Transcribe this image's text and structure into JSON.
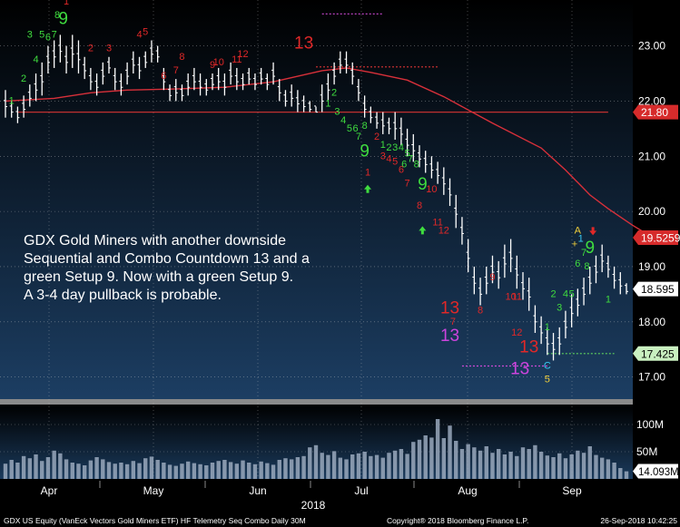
{
  "chart_data": {
    "type": "candlestick",
    "ticker": "GDX US Equity",
    "ylim": [
      16.6,
      23.7
    ],
    "yticks": [
      "23.00",
      "22.00",
      "21.00",
      "20.00",
      "19.00",
      "18.00",
      "17.00"
    ],
    "xticks": [
      "Apr",
      "May",
      "Jun",
      "Jul",
      "Aug",
      "Sep"
    ],
    "year_label": "2018",
    "price_tags": [
      {
        "text": "21.80",
        "value": 21.8,
        "color": "#d62b2b",
        "text_color": "#ffffff"
      },
      {
        "text": "19.5259",
        "value": 19.5259,
        "color": "#d62b2b",
        "text_color": "#ffffff"
      },
      {
        "text": "18.595",
        "value": 18.595,
        "color": "#ffffff",
        "text_color": "#000000"
      },
      {
        "text": "17.425",
        "value": 17.425,
        "color": "#c9f0c0",
        "text_color": "#000000"
      }
    ],
    "moving_average": [
      [
        0,
        22.0
      ],
      [
        8,
        22.05
      ],
      [
        14,
        22.15
      ],
      [
        20,
        22.2
      ],
      [
        28,
        22.22
      ],
      [
        36,
        22.25
      ],
      [
        44,
        22.35
      ],
      [
        52,
        22.55
      ],
      [
        56,
        22.6
      ],
      [
        60,
        22.52
      ],
      [
        66,
        22.38
      ],
      [
        72,
        22.08
      ],
      [
        80,
        21.6
      ],
      [
        88,
        21.15
      ],
      [
        92,
        20.75
      ],
      [
        96,
        20.3
      ],
      [
        99,
        20.05
      ],
      [
        103,
        19.75
      ],
      [
        106,
        19.55
      ]
    ],
    "ohlc": [
      [
        0,
        22.2,
        21.7
      ],
      [
        1,
        22.0,
        21.7
      ],
      [
        2,
        21.9,
        21.6
      ],
      [
        3,
        22.1,
        21.7
      ],
      [
        4,
        22.3,
        21.9
      ],
      [
        5,
        22.5,
        22.0
      ],
      [
        6,
        22.7,
        22.1
      ],
      [
        7,
        23.0,
        22.5
      ],
      [
        8,
        23.1,
        22.6
      ],
      [
        9,
        23.2,
        22.7
      ],
      [
        10,
        23.0,
        22.5
      ],
      [
        11,
        23.2,
        22.6
      ],
      [
        12,
        23.1,
        22.5
      ],
      [
        13,
        22.8,
        22.4
      ],
      [
        14,
        22.6,
        22.2
      ],
      [
        15,
        22.5,
        22.1
      ],
      [
        16,
        22.7,
        22.3
      ],
      [
        17,
        22.8,
        22.5
      ],
      [
        18,
        22.6,
        22.2
      ],
      [
        19,
        22.5,
        22.1
      ],
      [
        20,
        22.7,
        22.3
      ],
      [
        21,
        22.9,
        22.5
      ],
      [
        22,
        22.8,
        22.4
      ],
      [
        23,
        22.9,
        22.6
      ],
      [
        24,
        23.1,
        22.7
      ],
      [
        25,
        23.0,
        22.7
      ],
      [
        26,
        22.6,
        22.2
      ],
      [
        27,
        22.3,
        22.0
      ],
      [
        28,
        22.4,
        22.0
      ],
      [
        29,
        22.3,
        22.0
      ],
      [
        30,
        22.5,
        22.1
      ],
      [
        31,
        22.6,
        22.2
      ],
      [
        32,
        22.5,
        22.1
      ],
      [
        33,
        22.4,
        22.1
      ],
      [
        34,
        22.5,
        22.2
      ],
      [
        35,
        22.6,
        22.2
      ],
      [
        36,
        22.5,
        22.1
      ],
      [
        37,
        22.7,
        22.3
      ],
      [
        38,
        22.6,
        22.2
      ],
      [
        39,
        22.5,
        22.2
      ],
      [
        40,
        22.6,
        22.3
      ],
      [
        41,
        22.5,
        22.2
      ],
      [
        42,
        22.6,
        22.3
      ],
      [
        43,
        22.5,
        22.2
      ],
      [
        44,
        22.7,
        22.3
      ],
      [
        45,
        22.4,
        22.0
      ],
      [
        46,
        22.2,
        21.9
      ],
      [
        47,
        22.3,
        21.9
      ],
      [
        48,
        22.2,
        21.8
      ],
      [
        49,
        22.1,
        21.8
      ],
      [
        50,
        22.0,
        21.8
      ],
      [
        51,
        21.9,
        21.8
      ],
      [
        52,
        22.3,
        21.8
      ],
      [
        53,
        22.5,
        22.0
      ],
      [
        54,
        22.7,
        22.3
      ],
      [
        55,
        22.9,
        22.5
      ],
      [
        56,
        22.9,
        22.5
      ],
      [
        57,
        22.7,
        22.3
      ],
      [
        58,
        22.4,
        22.0
      ],
      [
        59,
        22.1,
        21.7
      ],
      [
        60,
        21.9,
        21.6
      ],
      [
        61,
        21.8,
        21.5
      ],
      [
        62,
        21.8,
        21.4
      ],
      [
        63,
        21.7,
        21.4
      ],
      [
        64,
        21.8,
        21.3
      ],
      [
        65,
        21.7,
        21.2
      ],
      [
        66,
        21.5,
        21.0
      ],
      [
        67,
        21.4,
        20.9
      ],
      [
        68,
        21.2,
        20.8
      ],
      [
        69,
        21.1,
        20.7
      ],
      [
        70,
        21.0,
        20.6
      ],
      [
        71,
        20.9,
        20.5
      ],
      [
        72,
        20.8,
        20.3
      ],
      [
        73,
        20.6,
        20.1
      ],
      [
        74,
        20.3,
        19.7
      ],
      [
        75,
        19.9,
        19.4
      ],
      [
        76,
        19.5,
        18.9
      ],
      [
        77,
        19.0,
        18.5
      ],
      [
        78,
        18.8,
        18.3
      ],
      [
        79,
        19.0,
        18.5
      ],
      [
        80,
        19.2,
        18.7
      ],
      [
        81,
        19.1,
        18.6
      ],
      [
        82,
        19.4,
        18.8
      ],
      [
        83,
        19.5,
        18.9
      ],
      [
        84,
        19.2,
        18.6
      ],
      [
        85,
        18.9,
        18.4
      ],
      [
        86,
        18.8,
        18.2
      ],
      [
        87,
        18.3,
        17.8
      ],
      [
        88,
        18.1,
        17.6
      ],
      [
        89,
        17.9,
        17.4
      ],
      [
        90,
        17.8,
        17.3
      ],
      [
        91,
        17.9,
        17.4
      ],
      [
        92,
        18.2,
        17.7
      ],
      [
        93,
        18.5,
        17.9
      ],
      [
        94,
        18.6,
        18.1
      ],
      [
        95,
        18.8,
        18.3
      ],
      [
        96,
        19.0,
        18.5
      ],
      [
        97,
        19.2,
        18.7
      ],
      [
        98,
        19.4,
        18.9
      ],
      [
        99,
        19.2,
        18.8
      ],
      [
        100,
        19.0,
        18.6
      ],
      [
        101,
        18.9,
        18.5
      ],
      [
        102,
        18.7,
        18.5
      ]
    ],
    "setup_labels": [
      {
        "text": "1",
        "x": 1,
        "y": 21.95,
        "color": "#3fdc3f"
      },
      {
        "text": "2",
        "x": 3,
        "y": 22.35,
        "color": "#3fdc3f"
      },
      {
        "text": "3",
        "x": 4,
        "y": 23.15,
        "color": "#3fdc3f"
      },
      {
        "text": "4",
        "x": 5,
        "y": 22.7,
        "color": "#3fdc3f"
      },
      {
        "text": "5",
        "x": 6,
        "y": 23.15,
        "color": "#3fdc3f"
      },
      {
        "text": "6",
        "x": 7,
        "y": 23.1,
        "color": "#3fdc3f"
      },
      {
        "text": "7",
        "x": 8,
        "y": 23.15,
        "color": "#3fdc3f"
      },
      {
        "text": "8",
        "x": 8.5,
        "y": 23.5,
        "color": "#3fdc3f"
      },
      {
        "text": "9",
        "x": 9.5,
        "y": 23.4,
        "color": "#3fdc3f",
        "big": true
      },
      {
        "text": "1",
        "x": 10,
        "y": 23.75,
        "color": "#e02828"
      },
      {
        "text": "2",
        "x": 14,
        "y": 22.9,
        "color": "#e02828"
      },
      {
        "text": "3",
        "x": 17,
        "y": 22.9,
        "color": "#e02828"
      },
      {
        "text": "4",
        "x": 22,
        "y": 23.15,
        "color": "#e02828"
      },
      {
        "text": "5",
        "x": 23,
        "y": 23.2,
        "color": "#e02828"
      },
      {
        "text": "6",
        "x": 26,
        "y": 22.4,
        "color": "#e02828"
      },
      {
        "text": "7",
        "x": 28,
        "y": 22.5,
        "color": "#e02828"
      },
      {
        "text": "8",
        "x": 29,
        "y": 22.75,
        "color": "#e02828"
      },
      {
        "text": "9",
        "x": 34,
        "y": 22.6,
        "color": "#e02828"
      },
      {
        "text": "10",
        "x": 35,
        "y": 22.65,
        "color": "#e02828"
      },
      {
        "text": "11",
        "x": 38,
        "y": 22.7,
        "color": "#e02828"
      },
      {
        "text": "12",
        "x": 39,
        "y": 22.8,
        "color": "#e02828"
      },
      {
        "text": "13",
        "x": 49,
        "y": 22.95,
        "color": "#e02828",
        "big": true
      },
      {
        "text": "1",
        "x": 53,
        "y": 21.9,
        "color": "#3fdc3f"
      },
      {
        "text": "2",
        "x": 54,
        "y": 22.1,
        "color": "#3fdc3f"
      },
      {
        "text": "3",
        "x": 54.5,
        "y": 21.75,
        "color": "#3fdc3f"
      },
      {
        "text": "4",
        "x": 55.5,
        "y": 21.6,
        "color": "#3fdc3f"
      },
      {
        "text": "5",
        "x": 56.5,
        "y": 21.45,
        "color": "#3fdc3f"
      },
      {
        "text": "6",
        "x": 57.5,
        "y": 21.45,
        "color": "#3fdc3f"
      },
      {
        "text": "7",
        "x": 58,
        "y": 21.3,
        "color": "#3fdc3f"
      },
      {
        "text": "8",
        "x": 59,
        "y": 21.5,
        "color": "#3fdc3f"
      },
      {
        "text": "9",
        "x": 59,
        "y": 21.0,
        "color": "#3fdc3f",
        "big": true
      },
      {
        "text": "1",
        "x": 59.5,
        "y": 20.65,
        "color": "#e02828"
      },
      {
        "text": "2",
        "x": 61,
        "y": 21.3,
        "color": "#e02828"
      },
      {
        "text": "1",
        "x": 62,
        "y": 21.15,
        "color": "#3fdc3f"
      },
      {
        "text": "2",
        "x": 63,
        "y": 21.1,
        "color": "#3fdc3f"
      },
      {
        "text": "3",
        "x": 64,
        "y": 21.1,
        "color": "#3fdc3f"
      },
      {
        "text": "4",
        "x": 65,
        "y": 21.1,
        "color": "#3fdc3f"
      },
      {
        "text": "5",
        "x": 66,
        "y": 21.0,
        "color": "#3fdc3f"
      },
      {
        "text": "6",
        "x": 65.5,
        "y": 20.8,
        "color": "#3fdc3f"
      },
      {
        "text": "7",
        "x": 66.5,
        "y": 20.9,
        "color": "#3fdc3f"
      },
      {
        "text": "8",
        "x": 67.5,
        "y": 20.8,
        "color": "#3fdc3f"
      },
      {
        "text": "9",
        "x": 68.5,
        "y": 20.4,
        "color": "#3fdc3f",
        "big": true
      },
      {
        "text": "3",
        "x": 62,
        "y": 20.95,
        "color": "#e02828"
      },
      {
        "text": "4",
        "x": 63,
        "y": 20.9,
        "color": "#e02828"
      },
      {
        "text": "5",
        "x": 64,
        "y": 20.85,
        "color": "#e02828"
      },
      {
        "text": "6",
        "x": 65,
        "y": 20.7,
        "color": "#e02828"
      },
      {
        "text": "7",
        "x": 66,
        "y": 20.45,
        "color": "#e02828"
      },
      {
        "text": "8",
        "x": 68,
        "y": 20.05,
        "color": "#e02828"
      },
      {
        "text": "10",
        "x": 70,
        "y": 20.35,
        "color": "#e02828"
      },
      {
        "text": "11",
        "x": 71,
        "y": 19.75,
        "color": "#e02828"
      },
      {
        "text": "12",
        "x": 72,
        "y": 19.6,
        "color": "#e02828"
      },
      {
        "text": "13",
        "x": 73,
        "y": 18.15,
        "color": "#e02828",
        "big": true
      },
      {
        "text": "7",
        "x": 73.5,
        "y": 17.95,
        "color": "#e02828"
      },
      {
        "text": "13",
        "x": 73,
        "y": 17.65,
        "color": "#cc44dd",
        "big": true
      },
      {
        "text": "8",
        "x": 78,
        "y": 18.15,
        "color": "#e02828"
      },
      {
        "text": "9",
        "x": 80,
        "y": 18.75,
        "color": "#e02828"
      },
      {
        "text": "10",
        "x": 83,
        "y": 18.4,
        "color": "#e02828"
      },
      {
        "text": "11",
        "x": 84,
        "y": 18.4,
        "color": "#e02828"
      },
      {
        "text": "12",
        "x": 84,
        "y": 17.75,
        "color": "#e02828"
      },
      {
        "text": "13",
        "x": 86,
        "y": 17.45,
        "color": "#e02828",
        "big": true
      },
      {
        "text": "13",
        "x": 84.5,
        "y": 17.05,
        "color": "#cc44dd",
        "big": true
      },
      {
        "text": "C",
        "x": 89,
        "y": 17.15,
        "color": "#39c8f2"
      },
      {
        "text": "5",
        "x": 89,
        "y": 16.9,
        "color": "#f2d03b"
      },
      {
        "text": "1",
        "x": 89,
        "y": 17.85,
        "color": "#3fdc3f"
      },
      {
        "text": "2",
        "x": 90,
        "y": 18.45,
        "color": "#3fdc3f"
      },
      {
        "text": "3",
        "x": 91,
        "y": 18.2,
        "color": "#3fdc3f"
      },
      {
        "text": "4",
        "x": 92,
        "y": 18.45,
        "color": "#3fdc3f"
      },
      {
        "text": "5",
        "x": 93,
        "y": 18.45,
        "color": "#3fdc3f"
      },
      {
        "text": "6",
        "x": 94,
        "y": 19.0,
        "color": "#3fdc3f"
      },
      {
        "text": "7",
        "x": 95,
        "y": 19.2,
        "color": "#3fdc3f"
      },
      {
        "text": "8",
        "x": 95.5,
        "y": 18.95,
        "color": "#3fdc3f"
      },
      {
        "text": "9",
        "x": 96,
        "y": 19.25,
        "color": "#3fdc3f",
        "big": true
      },
      {
        "text": "1",
        "x": 99,
        "y": 18.35,
        "color": "#3fdc3f"
      },
      {
        "text": "A",
        "x": 94,
        "y": 19.6,
        "color": "#f2d03b"
      },
      {
        "text": "+",
        "x": 93.5,
        "y": 19.35,
        "color": "#f2d03b"
      },
      {
        "text": "1",
        "x": 94.5,
        "y": 19.45,
        "color": "#39c8f2"
      }
    ],
    "arrows": [
      {
        "x": 59.5,
        "y": 20.4,
        "dir": "up",
        "color": "#3fdc3f"
      },
      {
        "x": 68.5,
        "y": 19.65,
        "dir": "up",
        "color": "#3fdc3f"
      },
      {
        "x": 96.5,
        "y": 19.65,
        "dir": "down",
        "color": "#e02828"
      }
    ],
    "levels": [
      {
        "y": 21.8,
        "x1": 2,
        "x2": 99,
        "style": "solid",
        "color": "#c03030"
      },
      {
        "y": 22.62,
        "x1": 51,
        "x2": 71,
        "style": "dash",
        "color": "#c03030"
      },
      {
        "y": 23.58,
        "x1": 52,
        "x2": 62,
        "style": "dash",
        "color": "#d04ad8"
      },
      {
        "y": 17.2,
        "x1": 75,
        "x2": 89,
        "style": "dash",
        "color": "#d04ad8"
      },
      {
        "y": 17.425,
        "x1": 89,
        "x2": 100,
        "style": "dash",
        "color": "#5fd65f"
      }
    ],
    "volume_ylim": [
      0,
      130
    ],
    "volume_ticks": [
      {
        "text": "100M",
        "value": 100
      },
      {
        "text": "50M",
        "value": 50
      }
    ],
    "volume_tag": {
      "text": "14.093M",
      "value": 14.093
    },
    "volume": [
      28,
      35,
      30,
      42,
      38,
      45,
      33,
      40,
      52,
      47,
      36,
      30,
      28,
      25,
      34,
      40,
      36,
      31,
      28,
      30,
      27,
      33,
      29,
      38,
      41,
      35,
      30,
      26,
      24,
      28,
      32,
      29,
      27,
      25,
      30,
      33,
      35,
      31,
      28,
      34,
      30,
      27,
      32,
      29,
      26,
      35,
      38,
      36,
      40,
      42,
      58,
      62,
      48,
      44,
      51,
      39,
      36,
      45,
      47,
      50,
      42,
      44,
      39,
      48,
      52,
      55,
      46,
      68,
      72,
      80,
      76,
      110,
      75,
      98,
      70,
      55,
      64,
      58,
      52,
      60,
      48,
      55,
      45,
      50,
      42,
      58,
      55,
      62,
      50,
      43,
      40,
      47,
      38,
      45,
      52,
      48,
      60,
      44,
      39,
      36,
      30,
      20,
      14
    ]
  },
  "annotation": {
    "text": "GDX Gold Miners with another downside\nSequential and Combo Countdown 13 and a\ngreen Setup 9.  Now with a green Setup 9.\nA 3-4 day pullback is probable."
  },
  "footer": {
    "left": "GDX US Equity (VanEck Vectors Gold Miners ETF) HF Telemetry Seq Combo  Daily 30M",
    "center": "Copyright® 2018 Bloomberg Finance L.P.",
    "right": "26-Sep-2018 10:42:25"
  },
  "colors": {
    "bg_top": "#000000",
    "bg_bottom": "#1c3e63",
    "candle": "#ffffff",
    "ma_line": "#d8303a",
    "grid": "#cccccc",
    "axis_text": "#ffffff",
    "volume_bar": "#9aa9bd"
  }
}
